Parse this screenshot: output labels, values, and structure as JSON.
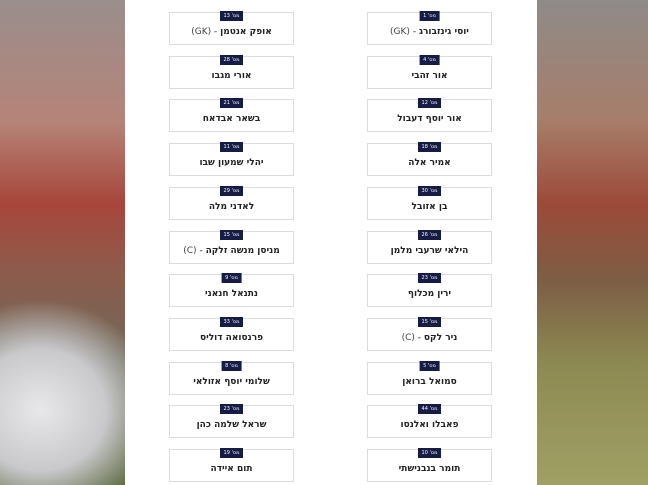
{
  "badge_prefix": "מס'",
  "left": [
    {
      "num": "13",
      "name": "אופק אנטמן",
      "suffix": "(GK)"
    },
    {
      "num": "28",
      "name": "אורי מגבו",
      "suffix": ""
    },
    {
      "num": "21",
      "name": "בשאר אבדאח",
      "suffix": ""
    },
    {
      "num": "11",
      "name": "יהלי שמעון שבו",
      "suffix": ""
    },
    {
      "num": "29",
      "name": "לאדני מלה",
      "suffix": ""
    },
    {
      "num": "15",
      "name": "מניסן מנשה זלקה",
      "suffix": "(C)"
    },
    {
      "num": "9",
      "name": "נתנאל חנאני",
      "suffix": ""
    },
    {
      "num": "33",
      "name": "פרנסואה דוליס",
      "suffix": ""
    },
    {
      "num": "8",
      "name": "שלומי יוסף אזולאי",
      "suffix": ""
    },
    {
      "num": "23",
      "name": "שראל שלמה כהן",
      "suffix": ""
    },
    {
      "num": "19",
      "name": "תום איידה",
      "suffix": ""
    }
  ],
  "right": [
    {
      "num": "1",
      "name": "יוסי גינזבורג",
      "suffix": "(GK)"
    },
    {
      "num": "4",
      "name": "אור זהבי",
      "suffix": ""
    },
    {
      "num": "12",
      "name": "אור יוסף דעבול",
      "suffix": ""
    },
    {
      "num": "18",
      "name": "אמיר אלה",
      "suffix": ""
    },
    {
      "num": "30",
      "name": "בן אזובל",
      "suffix": ""
    },
    {
      "num": "26",
      "name": "הילאי שרעבי מלמן",
      "suffix": ""
    },
    {
      "num": "23",
      "name": "ירין מכלוף",
      "suffix": ""
    },
    {
      "num": "15",
      "name": "ניר לקס",
      "suffix": "(C)"
    },
    {
      "num": "5",
      "name": "סמואל ברואן",
      "suffix": ""
    },
    {
      "num": "44",
      "name": "פאבלו ואלנסו",
      "suffix": ""
    },
    {
      "num": "10",
      "name": "תומר בנבנישתי",
      "suffix": ""
    }
  ]
}
